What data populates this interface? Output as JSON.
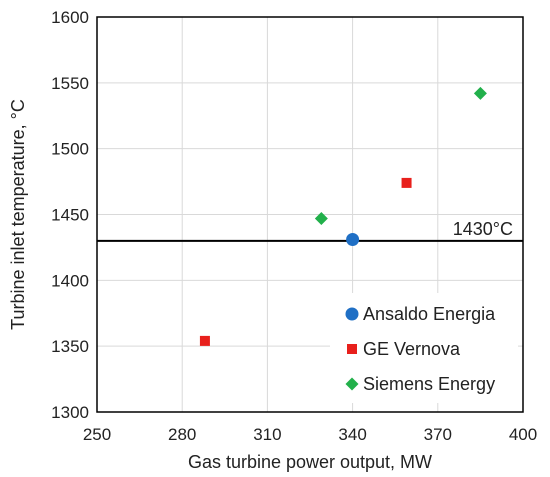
{
  "chart_data": {
    "type": "scatter",
    "xlabel": "Gas turbine power output, MW",
    "ylabel": "Turbine inlet temperature, °C",
    "xlim": [
      250,
      400
    ],
    "ylim": [
      1300,
      1600
    ],
    "xticks": [
      250,
      280,
      310,
      340,
      370,
      400
    ],
    "yticks": [
      1300,
      1350,
      1400,
      1450,
      1500,
      1550,
      1600
    ],
    "grid": true,
    "legend_position": "bottom-right",
    "series": [
      {
        "name": "Ansaldo Energia",
        "marker": "circle",
        "color": "#1f6fc5",
        "points": [
          {
            "x": 340,
            "y": 1431
          }
        ]
      },
      {
        "name": "GE Vernova",
        "marker": "square",
        "color": "#e8201c",
        "points": [
          {
            "x": 288,
            "y": 1354
          },
          {
            "x": 359,
            "y": 1474
          }
        ]
      },
      {
        "name": "Siemens Energy",
        "marker": "diamond",
        "color": "#22b04b",
        "points": [
          {
            "x": 329,
            "y": 1447
          },
          {
            "x": 385,
            "y": 1542
          }
        ]
      }
    ],
    "reference_line": {
      "y": 1430,
      "label": "1430°C"
    }
  }
}
